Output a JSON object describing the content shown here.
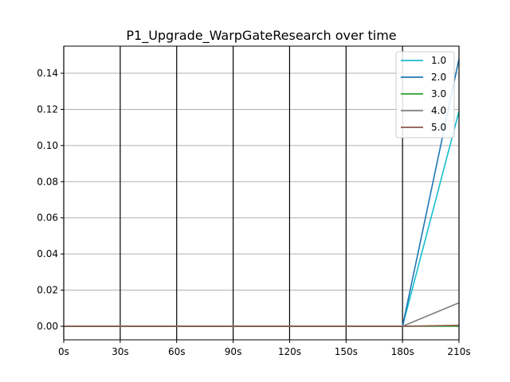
{
  "chart_data": {
    "type": "line",
    "title": "P1_Upgrade_WarpGateResearch over time",
    "xlabel": "",
    "ylabel": "",
    "x": [
      0,
      30,
      60,
      90,
      120,
      150,
      180,
      210
    ],
    "x_tick_labels": [
      "0s",
      "30s",
      "60s",
      "90s",
      "120s",
      "150s",
      "180s",
      "210s"
    ],
    "xlim": [
      0,
      210
    ],
    "ylim": [
      -0.0075,
      0.155
    ],
    "y_ticks": [
      0.0,
      0.02,
      0.04,
      0.06,
      0.08,
      0.1,
      0.12,
      0.14
    ],
    "y_tick_labels": [
      "0.00",
      "0.02",
      "0.04",
      "0.06",
      "0.08",
      "0.10",
      "0.12",
      "0.14"
    ],
    "grid": "horizontal gray gridlines; black vertical lines at x ticks",
    "legend_position": "top-right",
    "series": [
      {
        "name": "1.0",
        "color": "#17becf",
        "values": [
          0,
          0,
          0,
          0,
          0,
          0,
          0,
          0.119
        ]
      },
      {
        "name": "2.0",
        "color": "#1f77b4",
        "values": [
          0,
          0,
          0,
          0,
          0,
          0,
          0,
          0.148
        ]
      },
      {
        "name": "3.0",
        "color": "#2ca02c",
        "values": [
          0,
          0,
          0,
          0,
          0,
          0,
          0,
          0.0
        ]
      },
      {
        "name": "4.0",
        "color": "#7f7f7f",
        "values": [
          0,
          0,
          0,
          0,
          0,
          0,
          0,
          0.013
        ]
      },
      {
        "name": "5.0",
        "color": "#8c564b",
        "values": [
          0,
          0,
          0,
          0,
          0,
          0,
          0,
          0.0005
        ]
      }
    ]
  }
}
